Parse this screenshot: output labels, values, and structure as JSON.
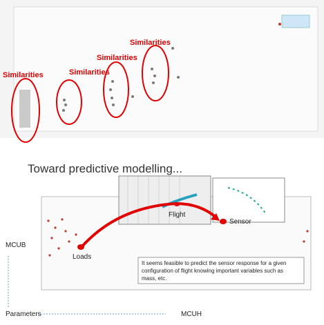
{
  "title": "Toward predictive modelling...",
  "top": {
    "annotations": [
      "Similarities",
      "Similarities",
      "Similarities",
      "Similarities"
    ]
  },
  "bottom": {
    "labels": [
      "Loads",
      "Flight",
      "Sensor"
    ],
    "note": [
      "It seems feasible to predict the sensor response for a given",
      "configuration of flight knowing important variables such as",
      "mass, etc."
    ],
    "y_label": "MCUB",
    "x_label": "MCUH",
    "caption": "Parameters"
  }
}
